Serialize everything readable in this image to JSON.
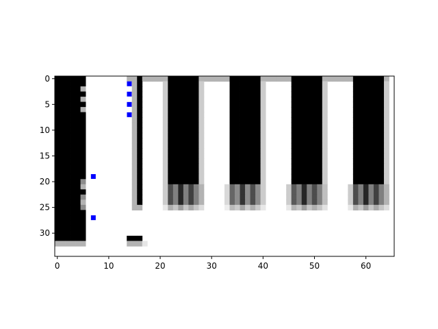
{
  "chart_data": {
    "type": "heatmap",
    "title": "",
    "xlabel": "",
    "ylabel": "",
    "colormap": "gray_r",
    "value_range": [
      0,
      1
    ],
    "width_cells": 66,
    "height_cells": 34,
    "xlim": [
      -0.5,
      65.5
    ],
    "ylim": [
      34.5,
      -0.5
    ],
    "x_ticks": [
      0,
      10,
      20,
      30,
      40,
      50,
      60
    ],
    "y_ticks": [
      0,
      5,
      10,
      15,
      20,
      25,
      30
    ],
    "grid": false,
    "legend": "none",
    "image_rows": [
      "kkkkkkmmmmmmmmmmmmmmbbbbbbbbbb....................................",
      "kkkkkkdk..........",
      "kkkkkm.k..........",
      "kkkkkkdk..........",
      "kkkkkm.k..........",
      "kkkkkkdk..........",
      "kkkkkm.k..........",
      "kkkkkkdk..........",
      "kkkkkkkk..........",
      "kkkkkkkk..........",
      "kkkkkkkk..........",
      "kkkkkkkk..........",
      "kkkkkkkk..........",
      "kkkkkkkk..........",
      "kkkkkkkk..........",
      "kkkkkkkk..........",
      "kkkkkkkk..........",
      "kkkkkkkk..........",
      "kkkkkkkk..........",
      "kkkkkkkk..........",
      "kkkkkdk...........",
      "kkkkkm.k..........",
      "kkkkkk.k..........",
      "kkkkkdk...........",
      "kkkkkm.k..........",
      "kkkkkdk...........",
      "kkkkkk.k..........",
      "kkkkkkdk..........",
      "kkkkkk.k..........",
      "kkkkkkkk..........",
      "kkkkkkkk..........",
      "kkkkkkkkkkkkkkkkk.",
      "mmmmmmmmmmmmmmmmml",
      ".................."
    ],
    "palette": {
      "k": 1.0,
      "d": 0.45,
      "m": 0.3,
      "b": 0.6,
      "l": 0.1,
      ".": 0.0
    },
    "blocks": [
      {
        "x": [
          6,
          14
        ],
        "y": [
          0,
          33
        ],
        "value": 0.0
      },
      {
        "x": [
          14,
          15
        ],
        "y": [
          0,
          0
        ],
        "value": 0.3
      },
      {
        "x": [
          15,
          16
        ],
        "y": [
          1,
          25
        ],
        "value": 0.3
      },
      {
        "x": [
          16,
          17
        ],
        "y": [
          0,
          24
        ],
        "value": 1.0
      },
      {
        "x": [
          16,
          17
        ],
        "y": [
          25,
          25
        ],
        "value": 0.3
      },
      {
        "x": [
          17,
          18
        ],
        "y": [
          0,
          0
        ],
        "value": 0.3
      },
      {
        "x": [
          17,
          18
        ],
        "y": [
          1,
          25
        ],
        "value": 0.0
      },
      {
        "x": [
          18,
          22
        ],
        "y": [
          0,
          0
        ],
        "value": 0.3
      },
      {
        "x": [
          21,
          22
        ],
        "y": [
          1,
          25
        ],
        "value": 0.2
      },
      {
        "x": [
          22,
          28
        ],
        "y": [
          0,
          20
        ],
        "value": 1.0
      },
      {
        "x": [
          28,
          34
        ],
        "y": [
          0,
          0
        ],
        "value": 0.3
      },
      {
        "x": [
          28,
          29
        ],
        "y": [
          1,
          25
        ],
        "value": 0.2
      },
      {
        "x": [
          34,
          40
        ],
        "y": [
          0,
          20
        ],
        "value": 1.0
      },
      {
        "x": [
          40,
          46
        ],
        "y": [
          0,
          0
        ],
        "value": 0.3
      },
      {
        "x": [
          40,
          41
        ],
        "y": [
          1,
          25
        ],
        "value": 0.2
      },
      {
        "x": [
          46,
          52
        ],
        "y": [
          0,
          20
        ],
        "value": 1.0
      },
      {
        "x": [
          52,
          58
        ],
        "y": [
          0,
          0
        ],
        "value": 0.3
      },
      {
        "x": [
          52,
          53
        ],
        "y": [
          1,
          25
        ],
        "value": 0.2
      },
      {
        "x": [
          58,
          64
        ],
        "y": [
          0,
          20
        ],
        "value": 1.0
      },
      {
        "x": [
          64,
          65
        ],
        "y": [
          0,
          0
        ],
        "value": 0.3
      },
      {
        "x": [
          64,
          65
        ],
        "y": [
          1,
          25
        ],
        "value": 0.2
      }
    ],
    "key_bottoms": [
      {
        "x0": 21,
        "cols": [
          0.2,
          0.7,
          0.5,
          0.85,
          0.5,
          0.75,
          0.5,
          0.3
        ]
      },
      {
        "x0": 33,
        "cols": [
          0.15,
          0.6,
          0.45,
          0.8,
          0.45,
          0.7,
          0.45,
          0.2
        ]
      },
      {
        "x0": 45,
        "cols": [
          0.2,
          0.65,
          0.5,
          0.85,
          0.5,
          0.7,
          0.5,
          0.25
        ]
      },
      {
        "x0": 57,
        "cols": [
          0.2,
          0.7,
          0.5,
          0.85,
          0.5,
          0.75,
          0.5,
          0.3
        ]
      }
    ],
    "markers": {
      "color": "#0000ff",
      "points": [
        {
          "x": 14,
          "y": 1
        },
        {
          "x": 14,
          "y": 3
        },
        {
          "x": 14,
          "y": 5
        },
        {
          "x": 14,
          "y": 7
        },
        {
          "x": 7,
          "y": 19
        },
        {
          "x": 7,
          "y": 27
        }
      ]
    }
  }
}
